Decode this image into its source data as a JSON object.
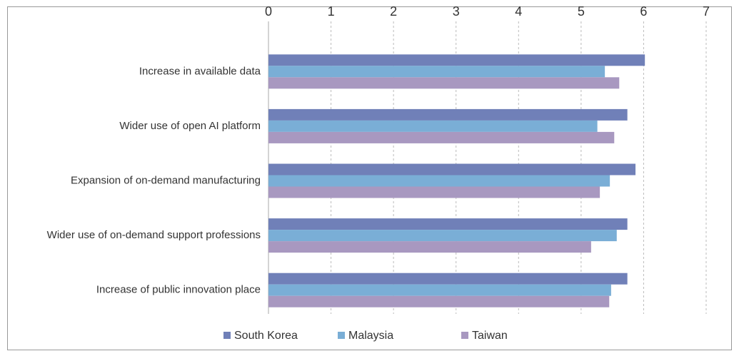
{
  "chart_data": {
    "type": "hbar",
    "categories": [
      "Increase in available data",
      "Wider use of open AI platform",
      "Expansion of on-demand manufacturing",
      "Wider use of on-demand support professions",
      "Increase of public innovation place"
    ],
    "series": [
      {
        "name": "South Korea",
        "color": "#7080b8",
        "values": [
          6.02,
          5.74,
          5.87,
          5.74,
          5.74
        ]
      },
      {
        "name": "Malaysia",
        "color": "#7aaed6",
        "values": [
          5.38,
          5.26,
          5.46,
          5.57,
          5.48
        ]
      },
      {
        "name": "Taiwan",
        "color": "#a898c0",
        "values": [
          5.61,
          5.53,
          5.3,
          5.16,
          5.45
        ]
      }
    ],
    "xlim": [
      0,
      7
    ],
    "xticks": [
      0,
      1,
      2,
      3,
      4,
      5,
      6,
      7
    ],
    "grid": true,
    "legend": "bottom"
  }
}
